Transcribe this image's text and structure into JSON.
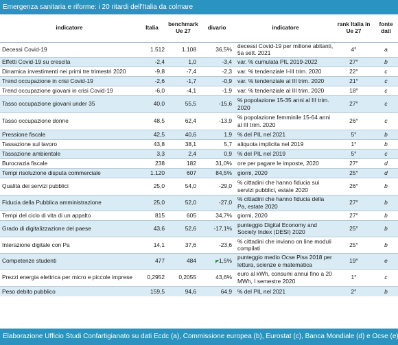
{
  "title": "Emergenza sanitaria e riforme: i 20 ritardi dell'Italia da colmare",
  "footer": "Elaborazione Ufficio Studi Confartigianato su dati Ecdc (a), Commissione europea (b), Eurostat (c), Banca Mondiale (d) e Ocse (e)",
  "headers": {
    "indicatore": "indicatore",
    "italia": "Italia",
    "benchmark": "benchmark Ue 27",
    "divario": "divario",
    "indicatore2": "indicatore",
    "rank": "rank Italia in Ue 27",
    "fonte": "fonte dati"
  },
  "rows": [
    {
      "indicatore": "Decessi Covid-19",
      "italia": "1.512",
      "benchmark": "1.108",
      "divario": "36,5%",
      "indicatore2": "decessi Covid-19 per milione abitanti, 5a sett. 2021",
      "rank": "4°",
      "fonte": "a"
    },
    {
      "indicatore": "Effetti Covid-19 su crescita",
      "italia": "-2,4",
      "benchmark": "1,0",
      "divario": "-3,4",
      "indicatore2": "var. % cumulata PIL 2019-2022",
      "rank": "27°",
      "fonte": "b"
    },
    {
      "indicatore": "Dinamica investimenti nei primi tre trimestri 2020",
      "italia": "-9,8",
      "benchmark": "-7,4",
      "divario": "-2,3",
      "indicatore2": "var. % tendenziale I-III trim. 2020",
      "rank": "22°",
      "fonte": "c"
    },
    {
      "indicatore": "Trend occupazione in crisi Covid-19",
      "italia": "-2,6",
      "benchmark": "-1,7",
      "divario": "-0,9",
      "indicatore2": "var. % tendenziale al III trim. 2020",
      "rank": "21°",
      "fonte": "c"
    },
    {
      "indicatore": "Trend occupazione giovani in crisi Covid-19",
      "italia": "-6,0",
      "benchmark": "-4,1",
      "divario": "-1,9",
      "indicatore2": "var. % tendenziale al III trim. 2020",
      "rank": "18°",
      "fonte": "c"
    },
    {
      "indicatore": "Tasso occupazione giovani under 35",
      "italia": "40,0",
      "benchmark": "55,5",
      "divario": "-15,6",
      "indicatore2": "% popolazione 15-35 anni al III trim. 2020",
      "rank": "27°",
      "fonte": "c"
    },
    {
      "indicatore": "Tasso occupazione donne",
      "italia": "48,5",
      "benchmark": "62,4",
      "divario": "-13,9",
      "indicatore2": "% popolazione femminile 15-64 anni al III trim. 2020",
      "rank": "26°",
      "fonte": "c"
    },
    {
      "indicatore": "Pressione fiscale",
      "italia": "42,5",
      "benchmark": "40,6",
      "divario": "1,9",
      "indicatore2": "% del PIL nel 2021",
      "rank": "5°",
      "fonte": "b"
    },
    {
      "indicatore": "Tassazione sul lavoro",
      "italia": "43,8",
      "benchmark": "38,1",
      "divario": "5,7",
      "indicatore2": "aliquota implicita nel 2019",
      "rank": "1°",
      "fonte": "b"
    },
    {
      "indicatore": "Tassazione ambientale",
      "italia": "3,3",
      "benchmark": "2,4",
      "divario": "0,9",
      "indicatore2": "% del PIL nel 2019",
      "rank": "5°",
      "fonte": "c"
    },
    {
      "indicatore": "Burocrazia fiscale",
      "italia": "238",
      "benchmark": "182",
      "divario": "31,0%",
      "indicatore2": "ore per pagare le imposte, 2020",
      "rank": "27°",
      "fonte": "d"
    },
    {
      "indicatore": "Tempi risoluzione disputa commerciale",
      "italia": "1.120",
      "benchmark": "607",
      "divario": "84,5%",
      "indicatore2": "giorni, 2020",
      "rank": "25°",
      "fonte": "d"
    },
    {
      "indicatore": "Qualità dei servizi pubblici",
      "italia": "25,0",
      "benchmark": "54,0",
      "divario": "-29,0",
      "indicatore2": "% cittadini che hanno fiducia sui servizi pubblici, estate 2020",
      "rank": "26°",
      "fonte": "b"
    },
    {
      "indicatore": "Fiducia della Pubblica amministrazione",
      "italia": "25,0",
      "benchmark": "52,0",
      "divario": "-27,0",
      "indicatore2": "% cittadini che hanno fiducia della Pa, estate 2020",
      "rank": "27°",
      "fonte": "b"
    },
    {
      "indicatore": "Tempi del ciclo di vita di un appalto",
      "italia": "815",
      "benchmark": "605",
      "divario": "34,7%",
      "indicatore2": "giorni, 2020",
      "rank": "27°",
      "fonte": "b"
    },
    {
      "indicatore": "Grado di digitalizzazione del paese",
      "italia": "43,6",
      "benchmark": "52,6",
      "divario": "-17,1%",
      "indicatore2": "punteggio Digital Economy and Society Index (DESI) 2020",
      "rank": "25°",
      "fonte": "b"
    },
    {
      "indicatore": "Interazione digitale con Pa",
      "italia": "14,1",
      "benchmark": "37,6",
      "divario": "-23,6",
      "indicatore2": "% cittadini che inviano on line moduli compilati",
      "rank": "25°",
      "fonte": "b"
    },
    {
      "indicatore": "Competenze studenti",
      "italia": "477",
      "benchmark": "484",
      "divario": "-1,5%",
      "indicatore2": "punteggio medio Ocse Pisa 2018 per lettura, scienze e matematica",
      "rank": "19°",
      "fonte": "e"
    },
    {
      "indicatore": "Prezzi energia elettrica per micro e piccole imprese",
      "italia": "0,2952",
      "benchmark": "0,2055",
      "divario": "43,6%",
      "indicatore2": "euro al kWh, consumi annui fino a 20 MWh, I semestre 2020",
      "rank": "1°",
      "fonte": "c"
    },
    {
      "indicatore": "Peso debito pubblico",
      "italia": "159,5",
      "benchmark": "94,6",
      "divario": "64,9",
      "indicatore2": "% del PIL nel 2021",
      "rank": "2°",
      "fonte": "b"
    }
  ]
}
